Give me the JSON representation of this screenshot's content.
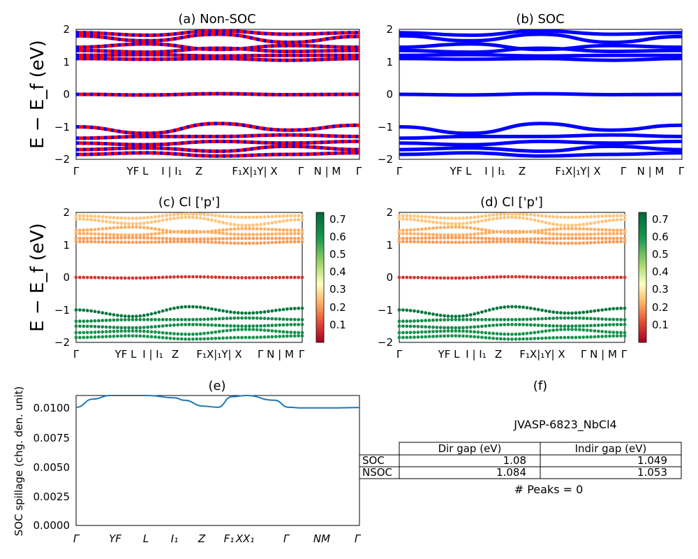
{
  "figure": {
    "panels": [
      {
        "id": "a",
        "title": "(a) Non-SOC",
        "ylabel": "E − E_f (eV)",
        "yticks": [
          "−2",
          "−1",
          "0",
          "1",
          "2"
        ]
      },
      {
        "id": "b",
        "title": "(b) SOC",
        "ylabel": "",
        "yticks": [
          "−2",
          "−1",
          "0",
          "1",
          "2"
        ]
      },
      {
        "id": "c",
        "title": "(c)  Cl ['p']",
        "ylabel": "E − E_f (eV)",
        "yticks": [
          "−2",
          "−1",
          "0",
          "1",
          "2"
        ]
      },
      {
        "id": "d",
        "title": "(d) Cl ['p']",
        "ylabel": "",
        "yticks": [
          "−2",
          "−1",
          "0",
          "1",
          "2"
        ]
      },
      {
        "id": "e",
        "title": "(e)",
        "ylabel": "SOC spillage (chg. den. unit)"
      },
      {
        "id": "f",
        "title": "(f)"
      }
    ],
    "kpath_labels_ab": [
      "Γ",
      "YF L",
      "I | I₁",
      "Z",
      "F₁X|₁Y| X",
      "Γ",
      "N | M",
      "Γ"
    ],
    "kpath_labels_cd": [
      "Γ",
      "YF L",
      "I | I₁",
      "Z",
      "F₁X|₁Y| X",
      "Γ N | M",
      "Γ"
    ],
    "kpath_labels_e": [
      "Γ",
      "YF",
      "L",
      "I₁",
      "Z",
      "F₁",
      "XX₁",
      "Γ",
      "NM",
      "Γ"
    ],
    "colorbar_ticks": [
      "0.1",
      "0.2",
      "0.3",
      "0.4",
      "0.5",
      "0.6",
      "0.7"
    ],
    "table": {
      "title": "JVASP-6823_NbCl4",
      "headers": [
        "Dir gap (eV)",
        "Indir gap (eV)"
      ],
      "rows": [
        {
          "label": "SOC",
          "dir": "1.08",
          "indir": "1.049"
        },
        {
          "label": "NSOC",
          "dir": "1.084",
          "indir": "1.053"
        }
      ],
      "footer": "# Peaks = 0"
    }
  },
  "chart_data": [
    {
      "type": "line",
      "title": "(a) Non-SOC",
      "ylabel": "E − E_f (eV)",
      "ylim": [
        -2,
        2
      ],
      "series_colors": [
        "#ff0000",
        "#0000ff"
      ],
      "bands": [
        {
          "name": "",
          "x": [
            0,
            0.25,
            0.5,
            0.75,
            1.0
          ],
          "values": [
            1.9,
            1.82,
            1.95,
            1.85,
            1.9
          ]
        },
        {
          "name": "",
          "x": [
            0,
            0.25,
            0.5,
            0.75,
            1.0
          ],
          "values": [
            1.8,
            1.65,
            1.85,
            1.6,
            1.78
          ]
        },
        {
          "name": "",
          "x": [
            0,
            0.25,
            0.5,
            0.75,
            1.0
          ],
          "values": [
            1.45,
            1.55,
            1.38,
            1.5,
            1.45
          ]
        },
        {
          "name": "",
          "x": [
            0,
            0.25,
            0.5,
            0.75,
            1.0
          ],
          "values": [
            1.35,
            1.3,
            1.42,
            1.32,
            1.35
          ]
        },
        {
          "name": "",
          "x": [
            0,
            0.25,
            0.5,
            0.75,
            1.0
          ],
          "values": [
            1.2,
            1.22,
            1.18,
            1.2,
            1.2
          ]
        },
        {
          "name": "",
          "x": [
            0,
            0.25,
            0.5,
            0.75,
            1.0
          ],
          "values": [
            1.1,
            1.08,
            1.1,
            1.05,
            1.1
          ]
        },
        {
          "name": "",
          "x": [
            0,
            0.25,
            0.5,
            0.75,
            1.0
          ],
          "values": [
            0.0,
            -0.02,
            0.02,
            -0.01,
            0.0
          ]
        },
        {
          "name": "",
          "x": [
            0,
            0.25,
            0.5,
            0.75,
            1.0
          ],
          "values": [
            -1.0,
            -1.2,
            -0.9,
            -1.1,
            -0.95
          ]
        },
        {
          "name": "",
          "x": [
            0,
            0.25,
            0.5,
            0.75,
            1.0
          ],
          "values": [
            -1.35,
            -1.3,
            -1.3,
            -1.25,
            -1.3
          ]
        },
        {
          "name": "",
          "x": [
            0,
            0.25,
            0.5,
            0.75,
            1.0
          ],
          "values": [
            -1.5,
            -1.55,
            -1.45,
            -1.5,
            -1.45
          ]
        },
        {
          "name": "",
          "x": [
            0,
            0.25,
            0.5,
            0.75,
            1.0
          ],
          "values": [
            -1.7,
            -1.65,
            -1.75,
            -1.6,
            -1.7
          ]
        },
        {
          "name": "",
          "x": [
            0,
            0.25,
            0.5,
            0.75,
            1.0
          ],
          "values": [
            -1.85,
            -1.8,
            -1.9,
            -1.85,
            -1.8
          ]
        }
      ]
    },
    {
      "type": "line",
      "title": "(b) SOC",
      "ylim": [
        -2,
        2
      ],
      "series_colors": [
        "#0000ff"
      ],
      "bands": [
        {
          "name": "",
          "x": [
            0,
            0.25,
            0.5,
            0.75,
            1.0
          ],
          "values": [
            1.9,
            1.82,
            1.95,
            1.85,
            1.9
          ]
        },
        {
          "name": "",
          "x": [
            0,
            0.25,
            0.5,
            0.75,
            1.0
          ],
          "values": [
            1.8,
            1.65,
            1.85,
            1.6,
            1.78
          ]
        },
        {
          "name": "",
          "x": [
            0,
            0.25,
            0.5,
            0.75,
            1.0
          ],
          "values": [
            1.45,
            1.55,
            1.38,
            1.5,
            1.45
          ]
        },
        {
          "name": "",
          "x": [
            0,
            0.25,
            0.5,
            0.75,
            1.0
          ],
          "values": [
            1.35,
            1.3,
            1.42,
            1.32,
            1.35
          ]
        },
        {
          "name": "",
          "x": [
            0,
            0.25,
            0.5,
            0.75,
            1.0
          ],
          "values": [
            1.2,
            1.22,
            1.18,
            1.2,
            1.2
          ]
        },
        {
          "name": "",
          "x": [
            0,
            0.25,
            0.5,
            0.75,
            1.0
          ],
          "values": [
            1.1,
            1.08,
            1.1,
            1.05,
            1.1
          ]
        },
        {
          "name": "",
          "x": [
            0,
            0.25,
            0.5,
            0.75,
            1.0
          ],
          "values": [
            0.0,
            -0.02,
            0.02,
            -0.01,
            0.0
          ]
        },
        {
          "name": "",
          "x": [
            0,
            0.25,
            0.5,
            0.75,
            1.0
          ],
          "values": [
            -1.0,
            -1.2,
            -0.9,
            -1.1,
            -0.95
          ]
        },
        {
          "name": "",
          "x": [
            0,
            0.25,
            0.5,
            0.75,
            1.0
          ],
          "values": [
            -1.35,
            -1.3,
            -1.3,
            -1.25,
            -1.3
          ]
        },
        {
          "name": "",
          "x": [
            0,
            0.25,
            0.5,
            0.75,
            1.0
          ],
          "values": [
            -1.5,
            -1.55,
            -1.45,
            -1.5,
            -1.45
          ]
        },
        {
          "name": "",
          "x": [
            0,
            0.25,
            0.5,
            0.75,
            1.0
          ],
          "values": [
            -1.7,
            -1.65,
            -1.75,
            -1.6,
            -1.7
          ]
        },
        {
          "name": "",
          "x": [
            0,
            0.25,
            0.5,
            0.75,
            1.0
          ],
          "values": [
            -1.85,
            -1.8,
            -1.9,
            -1.85,
            -1.8
          ]
        }
      ]
    },
    {
      "type": "scatter",
      "title": "(c)  Cl ['p']",
      "ylabel": "E − E_f (eV)",
      "ylim": [
        -2,
        2
      ],
      "colorscale": "RdYlGn",
      "clim": [
        0,
        0.73
      ],
      "bands": [
        {
          "x": [
            0,
            0.25,
            0.5,
            0.75,
            1.0
          ],
          "values": [
            1.9,
            1.82,
            1.95,
            1.85,
            1.9
          ],
          "weight": 0.25
        },
        {
          "x": [
            0,
            0.25,
            0.5,
            0.75,
            1.0
          ],
          "values": [
            1.8,
            1.65,
            1.85,
            1.6,
            1.78
          ],
          "weight": 0.25
        },
        {
          "x": [
            0,
            0.25,
            0.5,
            0.75,
            1.0
          ],
          "values": [
            1.45,
            1.55,
            1.38,
            1.5,
            1.45
          ],
          "weight": 0.22
        },
        {
          "x": [
            0,
            0.25,
            0.5,
            0.75,
            1.0
          ],
          "values": [
            1.35,
            1.3,
            1.42,
            1.32,
            1.35
          ],
          "weight": 0.22
        },
        {
          "x": [
            0,
            0.25,
            0.5,
            0.75,
            1.0
          ],
          "values": [
            1.2,
            1.22,
            1.18,
            1.2,
            1.2
          ],
          "weight": 0.2
        },
        {
          "x": [
            0,
            0.25,
            0.5,
            0.75,
            1.0
          ],
          "values": [
            1.1,
            1.08,
            1.1,
            1.05,
            1.1
          ],
          "weight": 0.2
        },
        {
          "x": [
            0,
            0.25,
            0.5,
            0.75,
            1.0
          ],
          "values": [
            0.0,
            -0.02,
            0.02,
            -0.01,
            0.0
          ],
          "weight": 0.08
        },
        {
          "x": [
            0,
            0.25,
            0.5,
            0.75,
            1.0
          ],
          "values": [
            -1.0,
            -1.2,
            -0.9,
            -1.1,
            -0.95
          ],
          "weight": 0.68
        },
        {
          "x": [
            0,
            0.25,
            0.5,
            0.75,
            1.0
          ],
          "values": [
            -1.35,
            -1.3,
            -1.3,
            -1.25,
            -1.3
          ],
          "weight": 0.62
        },
        {
          "x": [
            0,
            0.25,
            0.5,
            0.75,
            1.0
          ],
          "values": [
            -1.5,
            -1.55,
            -1.45,
            -1.5,
            -1.45
          ],
          "weight": 0.62
        },
        {
          "x": [
            0,
            0.25,
            0.5,
            0.75,
            1.0
          ],
          "values": [
            -1.7,
            -1.65,
            -1.75,
            -1.6,
            -1.7
          ],
          "weight": 0.6
        },
        {
          "x": [
            0,
            0.25,
            0.5,
            0.75,
            1.0
          ],
          "values": [
            -1.85,
            -1.8,
            -1.9,
            -1.85,
            -1.8
          ],
          "weight": 0.6
        }
      ]
    },
    {
      "type": "scatter",
      "title": "(d) Cl ['p']",
      "ylim": [
        -2,
        2
      ],
      "colorscale": "RdYlGn",
      "clim": [
        0,
        0.73
      ],
      "bands": [
        {
          "x": [
            0,
            0.25,
            0.5,
            0.75,
            1.0
          ],
          "values": [
            1.9,
            1.82,
            1.95,
            1.85,
            1.9
          ],
          "weight": 0.25
        },
        {
          "x": [
            0,
            0.25,
            0.5,
            0.75,
            1.0
          ],
          "values": [
            1.8,
            1.65,
            1.85,
            1.6,
            1.78
          ],
          "weight": 0.25
        },
        {
          "x": [
            0,
            0.25,
            0.5,
            0.75,
            1.0
          ],
          "values": [
            1.45,
            1.55,
            1.38,
            1.5,
            1.45
          ],
          "weight": 0.22
        },
        {
          "x": [
            0,
            0.25,
            0.5,
            0.75,
            1.0
          ],
          "values": [
            1.35,
            1.3,
            1.42,
            1.32,
            1.35
          ],
          "weight": 0.22
        },
        {
          "x": [
            0,
            0.25,
            0.5,
            0.75,
            1.0
          ],
          "values": [
            1.2,
            1.22,
            1.18,
            1.2,
            1.2
          ],
          "weight": 0.2
        },
        {
          "x": [
            0,
            0.25,
            0.5,
            0.75,
            1.0
          ],
          "values": [
            1.1,
            1.08,
            1.1,
            1.05,
            1.1
          ],
          "weight": 0.2
        },
        {
          "x": [
            0,
            0.25,
            0.5,
            0.75,
            1.0
          ],
          "values": [
            0.0,
            -0.02,
            0.02,
            -0.01,
            0.0
          ],
          "weight": 0.08
        },
        {
          "x": [
            0,
            0.25,
            0.5,
            0.75,
            1.0
          ],
          "values": [
            -1.0,
            -1.2,
            -0.9,
            -1.1,
            -0.95
          ],
          "weight": 0.68
        },
        {
          "x": [
            0,
            0.25,
            0.5,
            0.75,
            1.0
          ],
          "values": [
            -1.35,
            -1.3,
            -1.3,
            -1.25,
            -1.3
          ],
          "weight": 0.62
        },
        {
          "x": [
            0,
            0.25,
            0.5,
            0.75,
            1.0
          ],
          "values": [
            -1.5,
            -1.55,
            -1.45,
            -1.5,
            -1.45
          ],
          "weight": 0.62
        },
        {
          "x": [
            0,
            0.25,
            0.5,
            0.75,
            1.0
          ],
          "values": [
            -1.7,
            -1.65,
            -1.75,
            -1.6,
            -1.7
          ],
          "weight": 0.6
        },
        {
          "x": [
            0,
            0.25,
            0.5,
            0.75,
            1.0
          ],
          "values": [
            -1.85,
            -1.8,
            -1.9,
            -1.85,
            -1.8
          ],
          "weight": 0.6
        }
      ]
    },
    {
      "type": "line",
      "title": "(e)",
      "ylabel": "SOC spillage (chg. den. unit)",
      "ylim": [
        0,
        0.011
      ],
      "yticks": [
        "0.0000",
        "0.0025",
        "0.0050",
        "0.0075",
        "0.0100"
      ],
      "color": "#1f77b4",
      "series": [
        {
          "name": "",
          "x": [
            0,
            0.06,
            0.12,
            0.15,
            0.25,
            0.35,
            0.38,
            0.45,
            0.5,
            0.55,
            0.6,
            0.7,
            0.75,
            0.8,
            0.9,
            1.0
          ],
          "values": [
            0.01,
            0.0107,
            0.011,
            0.011,
            0.011,
            0.0108,
            0.0106,
            0.0101,
            0.01,
            0.0109,
            0.011,
            0.0106,
            0.01,
            0.00995,
            0.00995,
            0.00998
          ]
        }
      ]
    }
  ]
}
